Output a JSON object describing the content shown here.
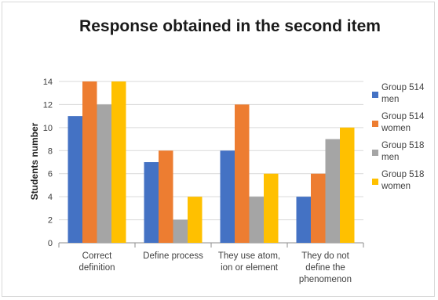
{
  "chart_data": {
    "type": "bar",
    "title": "Response obtained in the second item",
    "xlabel": "",
    "ylabel": "Students number",
    "ylim": [
      0,
      14
    ],
    "yticks": [
      0,
      2,
      4,
      6,
      8,
      10,
      12,
      14
    ],
    "grid": true,
    "legend_position": "right",
    "categories": [
      [
        "Correct",
        "definition"
      ],
      [
        "Define process"
      ],
      [
        "They use atom,",
        "ion or element"
      ],
      [
        "They do not",
        "define the",
        "phenomenon"
      ]
    ],
    "series": [
      {
        "name": [
          "Group 514",
          "men"
        ],
        "color": "#4472c4",
        "values": [
          11,
          7,
          8,
          4
        ]
      },
      {
        "name": [
          "Group 514",
          "women"
        ],
        "color": "#ed7d31",
        "values": [
          14,
          8,
          12,
          6
        ]
      },
      {
        "name": [
          "Group 518",
          "men"
        ],
        "color": "#a5a5a5",
        "values": [
          12,
          2,
          4,
          9
        ]
      },
      {
        "name": [
          "Group 518",
          "women"
        ],
        "color": "#ffc000",
        "values": [
          14,
          4,
          6,
          10
        ]
      }
    ]
  }
}
